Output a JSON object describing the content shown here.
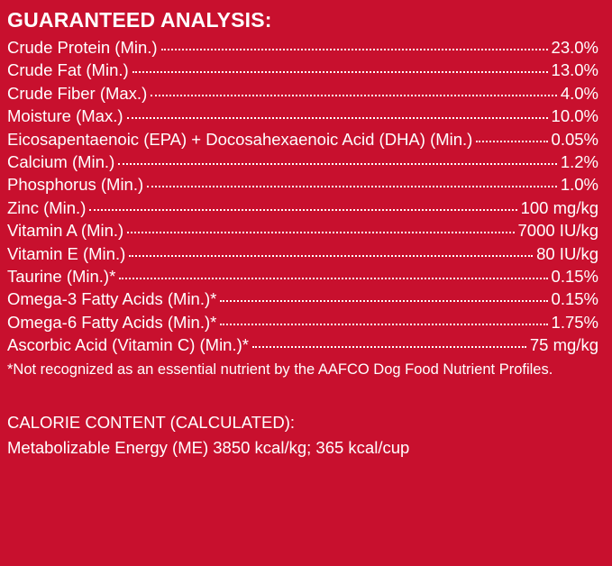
{
  "heading": "GUARANTEED ANALYSIS:",
  "rows": [
    {
      "label": "Crude Protein (Min.)",
      "value": "23.0%"
    },
    {
      "label": "Crude Fat (Min.)",
      "value": "13.0%"
    },
    {
      "label": "Crude Fiber (Max.)",
      "value": "4.0%"
    },
    {
      "label": "Moisture (Max.)",
      "value": "10.0%"
    },
    {
      "label": "Eicosapentaenoic (EPA) + Docosahexaenoic Acid (DHA) (Min.)",
      "value": "0.05%"
    },
    {
      "label": "Calcium (Min.)",
      "value": "1.2%"
    },
    {
      "label": "Phosphorus (Min.)",
      "value": "1.0%"
    },
    {
      "label": "Zinc (Min.)",
      "value": "100 mg/kg"
    },
    {
      "label": "Vitamin A (Min.)",
      "value": "7000 IU/kg"
    },
    {
      "label": "Vitamin E (Min.)",
      "value": "80 IU/kg"
    },
    {
      "label": "Taurine (Min.)*",
      "value": "0.15%"
    },
    {
      "label": "Omega-3 Fatty Acids (Min.)*",
      "value": "0.15%"
    },
    {
      "label": "Omega-6 Fatty Acids (Min.)*",
      "value": "1.75%"
    },
    {
      "label": "Ascorbic Acid (Vitamin C) (Min.)*",
      "value": "75 mg/kg"
    }
  ],
  "footnote": "*Not recognized as an essential nutrient by the AAFCO Dog Food Nutrient Profiles.",
  "calorie": {
    "heading": "CALORIE CONTENT (CALCULATED):",
    "line": "Metabolizable Energy (ME) 3850 kcal/kg;  365 kcal/cup"
  },
  "colors": {
    "background": "#C8102E",
    "text": "#FFFFFF"
  }
}
